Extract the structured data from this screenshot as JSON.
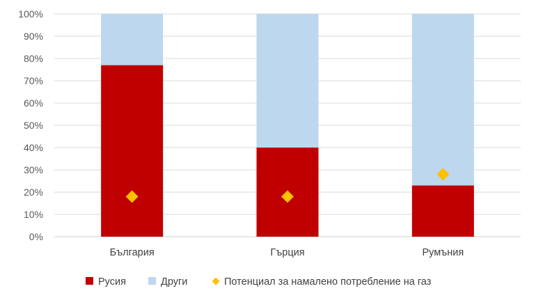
{
  "chart_data": {
    "type": "bar",
    "stacked": true,
    "percent": true,
    "categories": [
      "България",
      "Гърция",
      "Румъния"
    ],
    "series": [
      {
        "name": "Русия",
        "type": "bar",
        "color": "#c00000",
        "values": [
          77,
          40,
          23
        ]
      },
      {
        "name": "Други",
        "type": "bar",
        "color": "#bdd7ee",
        "values": [
          23,
          60,
          77
        ]
      },
      {
        "name": "Потенциал за намалено потребление на газ",
        "type": "scatter",
        "marker": "diamond",
        "color": "#ffc000",
        "values": [
          18,
          18,
          28
        ]
      }
    ],
    "ylim": [
      0,
      100
    ],
    "yticks": [
      "0%",
      "10%",
      "20%",
      "30%",
      "40%",
      "50%",
      "60%",
      "70%",
      "80%",
      "90%",
      "100%"
    ],
    "grid": true,
    "legend_position": "bottom"
  }
}
